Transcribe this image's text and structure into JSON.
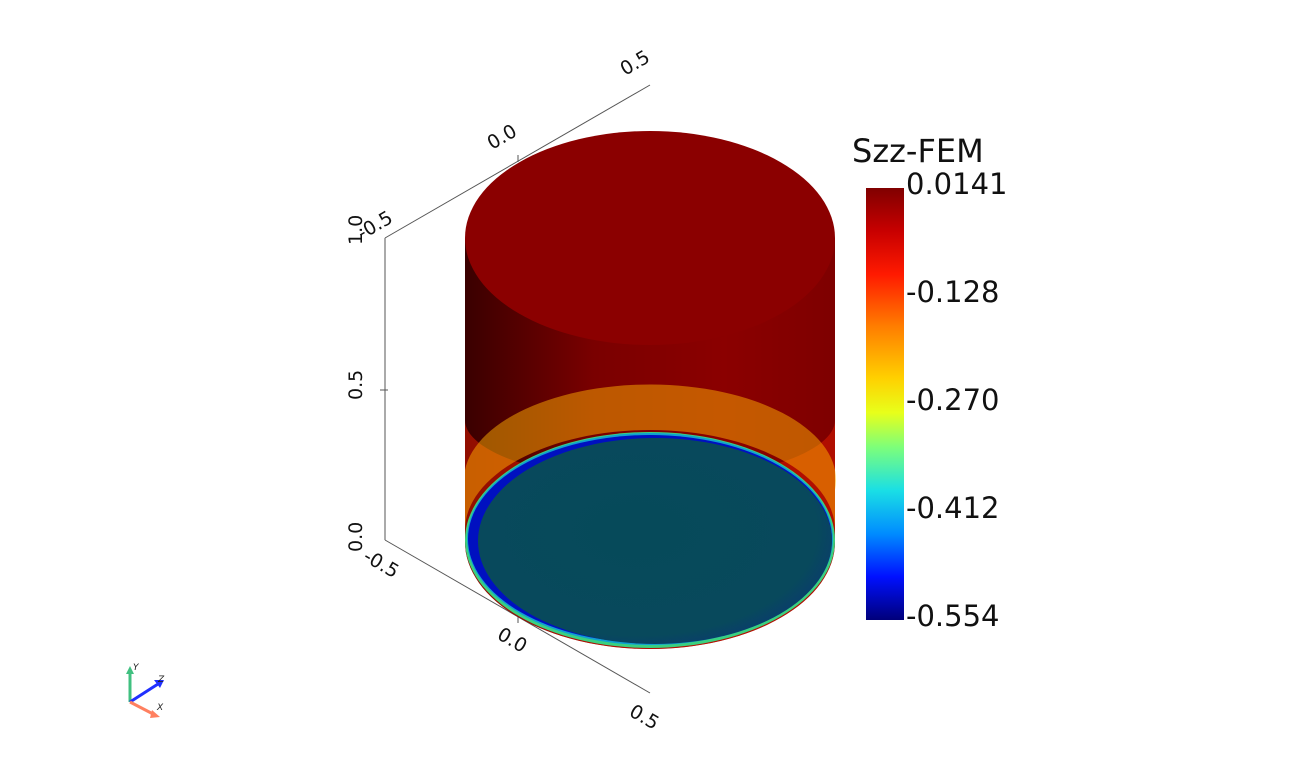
{
  "colorbar": {
    "title": "Szz-FEM",
    "labels": [
      "0.0141",
      "-0.128",
      "-0.270",
      "-0.412",
      "-0.554"
    ],
    "max": 0.0141,
    "min": -0.554
  },
  "axes": {
    "x_ticks": [
      "-0.5",
      "0.0",
      "0.5"
    ],
    "y_ticks": [
      "0.0",
      "0.5",
      "1.0"
    ],
    "z_ticks": [
      "-0.5",
      "0.0",
      "0.5"
    ],
    "z_ticks_top": [
      "-0.5",
      "0.0",
      "0.5"
    ]
  },
  "orientation_widget": {
    "x": "X",
    "y": "Y",
    "z": "Z",
    "x_color": "#ff8060",
    "y_color": "#40c080",
    "z_color": "#2030ff"
  },
  "colors": {
    "cylinder_top": "#8b0000",
    "cylinder_dark": "#3a0000",
    "bottom_face": "#0a4a5c"
  }
}
